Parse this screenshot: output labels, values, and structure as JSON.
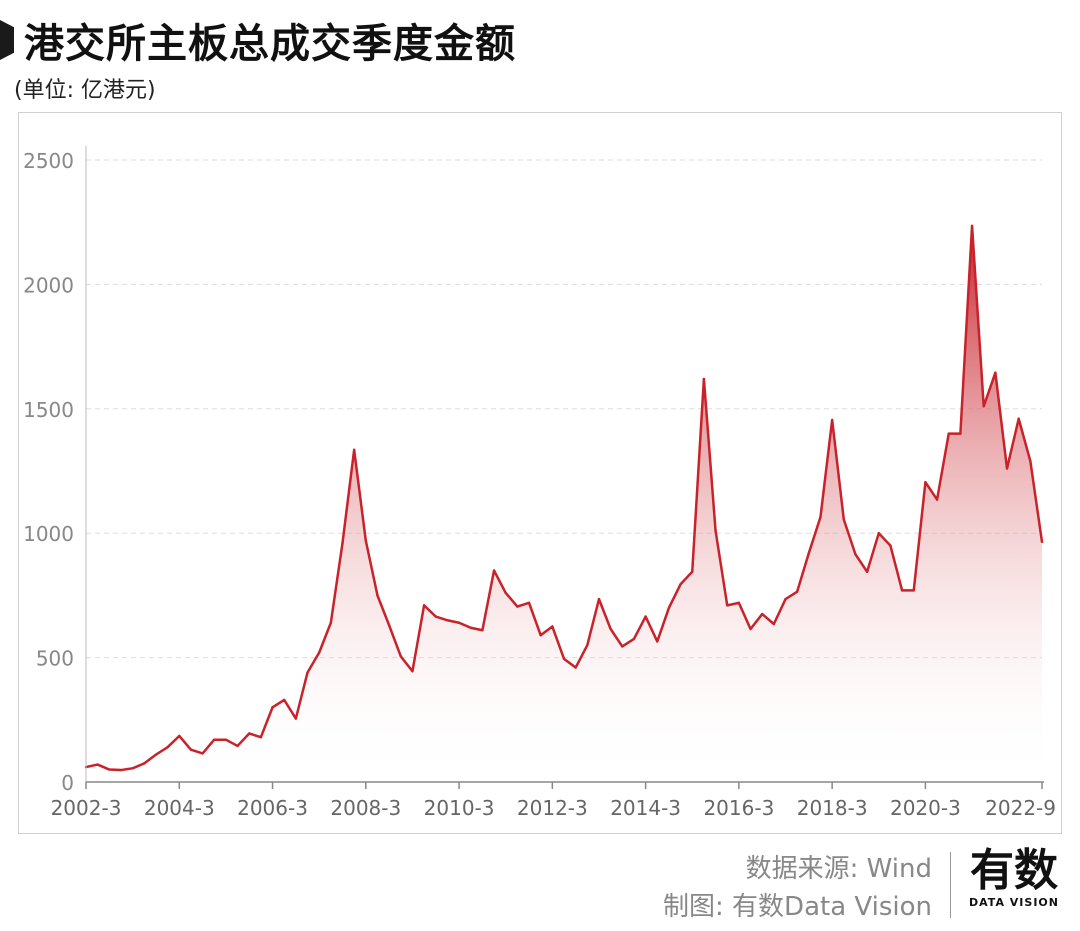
{
  "header": {
    "title": "港交所主板总成交季度金额",
    "unit": "(单位: 亿港元)"
  },
  "footer": {
    "source": "数据来源: Wind",
    "credit": "制图: 有数Data Vision"
  },
  "logo": {
    "main": "有数",
    "sub": "DATA VISION"
  },
  "colors": {
    "line": "#c8222b",
    "grid": "#dddddd",
    "axis": "#bbbbbb",
    "tick_label": "#888888"
  },
  "chart_data": {
    "type": "area",
    "title": "港交所主板总成交季度金额",
    "ylabel": "(单位: 亿港元)",
    "xlabel": "",
    "ylim": [
      0,
      2500
    ],
    "yticks": [
      0,
      500,
      1000,
      1500,
      2000,
      2500
    ],
    "grid": true,
    "x_tick_labels": [
      "2002-3",
      "2004-3",
      "2006-3",
      "2008-3",
      "2010-3",
      "2012-3",
      "2014-3",
      "2016-3",
      "2018-3",
      "2020-3",
      "2022-9"
    ],
    "x_tick_quarter_index": [
      0,
      8,
      16,
      24,
      32,
      40,
      48,
      56,
      64,
      72,
      82
    ],
    "x_start": "2002-3",
    "series": [
      {
        "values": [
          60,
          70,
          50,
          48,
          55,
          75,
          110,
          140,
          185,
          130,
          115,
          170,
          170,
          145,
          195,
          180,
          300,
          330,
          255,
          440,
          520,
          640,
          960,
          1335,
          970,
          750,
          630,
          505,
          445,
          710,
          665,
          650,
          640,
          620,
          610,
          850,
          760,
          705,
          720,
          590,
          625,
          495,
          460,
          550,
          735,
          615,
          545,
          575,
          665,
          565,
          700,
          795,
          845,
          1620,
          1010,
          710,
          720,
          615,
          675,
          635,
          735,
          765,
          920,
          1065,
          1455,
          1055,
          915,
          845,
          1000,
          950,
          770,
          770,
          1205,
          1135,
          1400,
          1400,
          2235,
          1510,
          1645,
          1260,
          1460,
          1290,
          965
        ]
      }
    ]
  }
}
